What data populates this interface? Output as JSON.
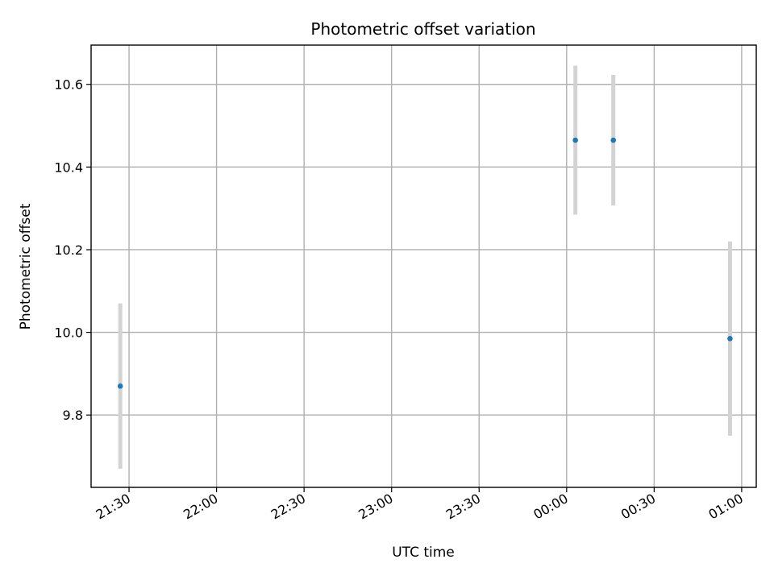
{
  "chart_data": {
    "type": "scatter",
    "title": "Photometric offset variation",
    "xlabel": "UTC time",
    "ylabel": "Photometric offset",
    "x_axis_type": "time",
    "x_ticks": [
      "21:30",
      "22:00",
      "22:30",
      "23:00",
      "23:30",
      "00:00",
      "00:30",
      "01:00"
    ],
    "x_range": [
      "21:17",
      "01:05"
    ],
    "ylim": [
      9.625,
      10.695
    ],
    "y_ticks": [
      9.8,
      10.0,
      10.2,
      10.4,
      10.6
    ],
    "grid": true,
    "colors": {
      "marker": "#1f77b4",
      "errorbar": "#d3d3d3"
    },
    "points": [
      {
        "x": "21:27",
        "y": 9.87,
        "yerr": 0.2
      },
      {
        "x": "00:03",
        "y": 10.465,
        "yerr": 0.18
      },
      {
        "x": "00:16",
        "y": 10.465,
        "yerr": 0.158
      },
      {
        "x": "00:56",
        "y": 9.985,
        "yerr": 0.235
      }
    ]
  }
}
